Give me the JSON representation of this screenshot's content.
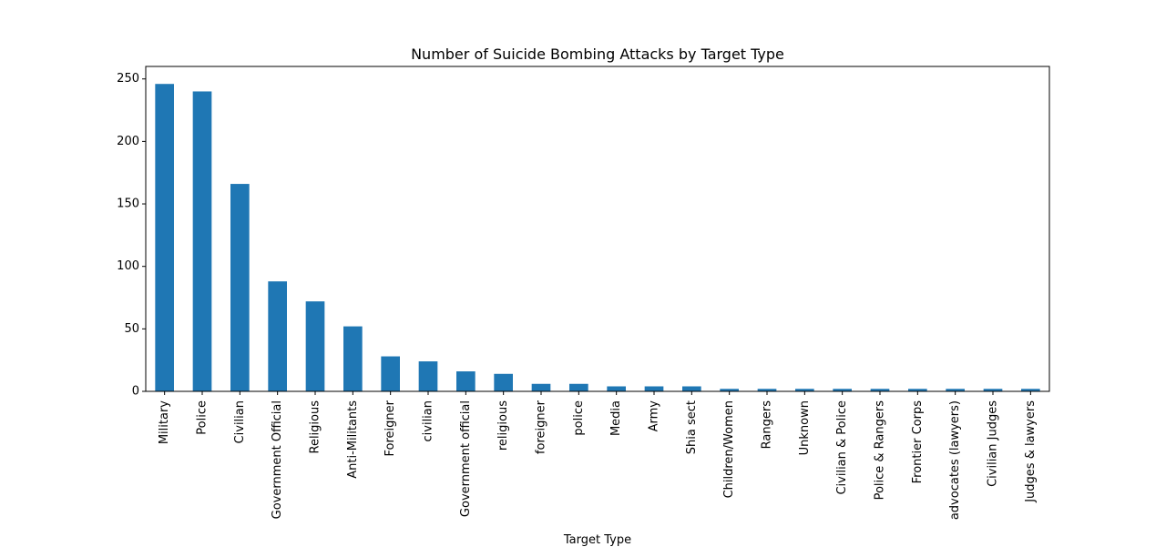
{
  "chart_data": {
    "type": "bar",
    "title": "Number of Suicide Bombing Attacks by Target Type",
    "xlabel": "Target Type",
    "ylabel": "",
    "ylim": [
      0,
      260
    ],
    "yticks": [
      0,
      50,
      100,
      150,
      200,
      250
    ],
    "grid": false,
    "legend": "none",
    "bar_color": "#1f77b4",
    "categories": [
      "Military",
      "Police",
      "Civilian",
      "Government Official",
      "Religious",
      "Anti-Militants",
      "Foreigner",
      "civilian",
      "Government official",
      "religious",
      "foreigner",
      "police",
      "Media",
      "Army",
      "Shia sect",
      "Children/Women",
      "Rangers",
      "Unknown",
      "Civilian & Police",
      "Police & Rangers",
      "Frontier Corps",
      "advocates (lawyers)",
      "Civilian Judges",
      "Judges & lawyers"
    ],
    "values": [
      246,
      240,
      166,
      88,
      72,
      52,
      28,
      24,
      16,
      14,
      6,
      6,
      4,
      4,
      4,
      2,
      2,
      2,
      2,
      2,
      2,
      2,
      2,
      2
    ]
  }
}
